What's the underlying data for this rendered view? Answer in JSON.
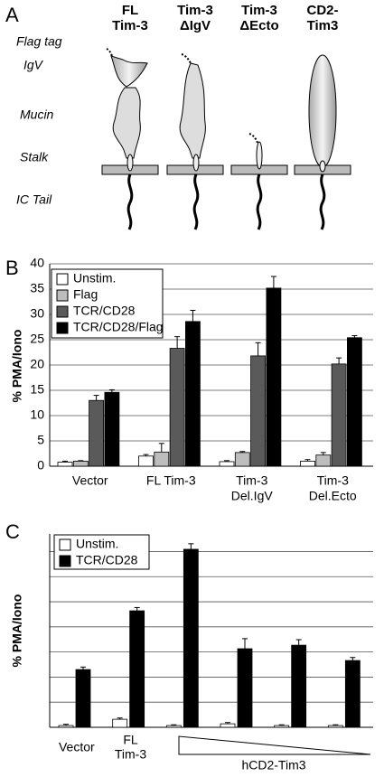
{
  "panel_labels": [
    "A",
    "B",
    "C"
  ],
  "diagram": {
    "constructs": [
      [
        "FL",
        "Tim-3"
      ],
      [
        "Tim-3",
        "ΔIgV"
      ],
      [
        "Tim-3",
        "ΔEcto"
      ],
      [
        "CD2-",
        "Tim3"
      ]
    ],
    "domains": [
      "Flag tag",
      "IgV",
      "Mucin",
      "Stalk",
      "IC Tail"
    ]
  },
  "chart_data": [
    {
      "type": "bar",
      "y_label": "% PMA/Iono",
      "categories": [
        [
          "Vector"
        ],
        [
          "FL Tim-3"
        ],
        [
          "Tim-3",
          "Del.IgV"
        ],
        [
          "Tim-3",
          "Del.Ecto"
        ]
      ],
      "series": [
        {
          "name": "Unstim.",
          "color": "#ffffff",
          "values": [
            0.8,
            2.0,
            0.9,
            1.0
          ],
          "errors": [
            0.2,
            0.3,
            0.2,
            0.3
          ]
        },
        {
          "name": "Flag",
          "color": "#bdbdbd",
          "values": [
            1.0,
            2.8,
            2.7,
            2.2
          ],
          "errors": [
            0.1,
            1.7,
            0.2,
            0.5
          ]
        },
        {
          "name": "TCR/CD28",
          "color": "#5a5a5a",
          "values": [
            13.0,
            23.3,
            21.8,
            20.2
          ],
          "errors": [
            1.0,
            2.3,
            2.6,
            1.2
          ]
        },
        {
          "name": "TCR/CD28/Flag",
          "color": "#000000",
          "values": [
            14.6,
            28.6,
            35.2,
            25.4
          ],
          "errors": [
            0.5,
            2.2,
            2.3,
            0.4
          ]
        }
      ],
      "ylim": [
        0,
        40
      ],
      "yticks": [
        0,
        5,
        10,
        15,
        20,
        25,
        30,
        35,
        40
      ],
      "grid": true,
      "legend": "upper left"
    },
    {
      "type": "bar",
      "y_label": "% PMA/Iono",
      "categories": [
        [
          "Vector"
        ],
        [
          "FL",
          "Tim-3"
        ],
        null,
        null,
        null,
        null
      ],
      "group_label": "hCD2-Tim3",
      "series": [
        {
          "name": "Unstim.",
          "color": "#ffffff",
          "values": [
            0.07,
            0.32,
            0.07,
            0.14,
            0.07,
            0.07
          ],
          "errors": [
            0.05,
            0.05,
            0.03,
            0.05,
            0.03,
            0.03
          ]
        },
        {
          "name": "TCR/CD28",
          "color": "#000000",
          "values": [
            2.3,
            4.64,
            7.09,
            3.13,
            3.27,
            2.66
          ],
          "errors": [
            0.1,
            0.13,
            0.22,
            0.4,
            0.22,
            0.12
          ]
        }
      ],
      "ylim": [
        0,
        7.7
      ],
      "ygrid": [
        0,
        1,
        2,
        3,
        4,
        5,
        6,
        7
      ],
      "grid": true,
      "legend": "upper left"
    }
  ]
}
